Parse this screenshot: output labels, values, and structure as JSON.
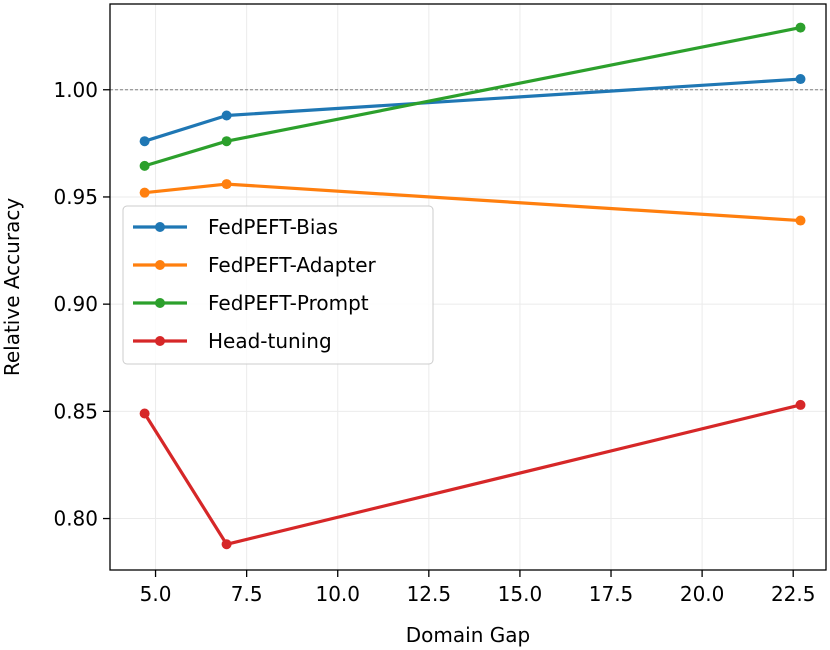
{
  "chart_data": {
    "type": "line",
    "xlabel": "Domain Gap",
    "ylabel": "Relative Accuracy",
    "xlim": [
      3.75,
      23.4
    ],
    "ylim": [
      0.776,
      1.04
    ],
    "xticks": [
      5.0,
      7.5,
      10.0,
      12.5,
      15.0,
      17.5,
      20.0,
      22.5
    ],
    "xtick_labels": [
      "5.0",
      "7.5",
      "10.0",
      "12.5",
      "15.0",
      "17.5",
      "20.0",
      "22.5"
    ],
    "yticks": [
      0.8,
      0.85,
      0.9,
      0.95,
      1.0
    ],
    "ytick_labels": [
      "0.80",
      "0.85",
      "0.90",
      "0.95",
      "1.00"
    ],
    "grid": true,
    "reference_line": {
      "y": 1.0,
      "style": "dashed",
      "color": "#808080"
    },
    "legend_position": "center-left",
    "x": [
      4.7,
      6.95,
      22.7
    ],
    "series": [
      {
        "name": "FedPEFT-Bias",
        "color": "#1f77b4",
        "values": [
          0.976,
          0.988,
          1.005
        ]
      },
      {
        "name": "FedPEFT-Adapter",
        "color": "#ff7f0e",
        "values": [
          0.952,
          0.956,
          0.939
        ]
      },
      {
        "name": "FedPEFT-Prompt",
        "color": "#2ca02c",
        "values": [
          0.9645,
          0.976,
          1.029
        ]
      },
      {
        "name": "Head-tuning",
        "color": "#d62728",
        "values": [
          0.849,
          0.788,
          0.853
        ]
      }
    ]
  }
}
